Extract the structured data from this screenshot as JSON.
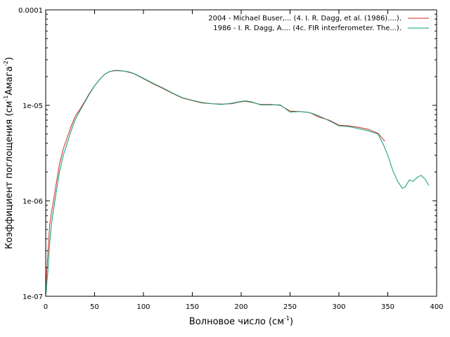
{
  "chart_data": {
    "type": "line",
    "xlabel": "Волновое число",
    "xlabel_unit_base": "(см",
    "xlabel_unit_exp": "-1",
    "xlabel_unit_close": ")",
    "ylabel_base": "Коэффициент поглощения (см",
    "ylabel_exp1": "-1",
    "ylabel_mid": "Амага",
    "ylabel_exp2": "-2",
    "ylabel_close": ")",
    "xlim": [
      0,
      400
    ],
    "ylim": [
      1e-07,
      0.0001
    ],
    "y_scale": "log",
    "x_ticks": [
      0,
      50,
      100,
      150,
      200,
      250,
      300,
      350,
      400
    ],
    "x_tick_labels": [
      "0",
      "50",
      "100",
      "150",
      "200",
      "250",
      "300",
      "350",
      "400"
    ],
    "y_ticks": [
      1e-07,
      1e-06,
      1e-05,
      0.0001
    ],
    "y_tick_labels": [
      "1e-07",
      "1e-06",
      "1e-05",
      "0.0001"
    ],
    "grid": false,
    "legend_position": "top-right",
    "series": [
      {
        "name": "2004 - Michael Buser,... (4. I. R. Dagg, et al. (1986)....).",
        "color": "#cc2a1f",
        "x": [
          0,
          2,
          4,
          6,
          8,
          10,
          14,
          18,
          22,
          26,
          30,
          35,
          40,
          45,
          50,
          55,
          60,
          65,
          70,
          75,
          80,
          85,
          90,
          100,
          110,
          120,
          130,
          140,
          150,
          160,
          170,
          180,
          190,
          200,
          205,
          210,
          220,
          230,
          240,
          250,
          260,
          270,
          280,
          290,
          300,
          310,
          320,
          330,
          340,
          347
        ],
        "y": [
          1.2e-07,
          2.6e-07,
          5.5e-07,
          7.6e-07,
          1e-06,
          1.35e-06,
          2.4e-06,
          3.5e-06,
          4.6e-06,
          6e-06,
          7.6e-06,
          9.1e-06,
          1.1e-05,
          1.35e-05,
          1.6e-05,
          1.85e-05,
          2.1e-05,
          2.25e-05,
          2.3e-05,
          2.3e-05,
          2.28e-05,
          2.22e-05,
          2.15e-05,
          1.9e-05,
          1.68e-05,
          1.5e-05,
          1.33e-05,
          1.19e-05,
          1.12e-05,
          1.06e-05,
          1.04e-05,
          1.03e-05,
          1.04e-05,
          1.09e-05,
          1.1e-05,
          1.08e-05,
          1.02e-05,
          1.02e-05,
          1e-05,
          8.7e-06,
          8.6e-06,
          8.4e-06,
          7.5e-06,
          7e-06,
          6.2e-06,
          6.1e-06,
          5.9e-06,
          5.6e-06,
          5.1e-06,
          4.2e-06
        ]
      },
      {
        "name": "1986 - I. R. Dagg, A.... (4c. FIR interferometer. The...).",
        "color": "#0b9b76",
        "x": [
          0,
          2,
          4,
          6,
          8,
          10,
          14,
          18,
          22,
          26,
          30,
          35,
          40,
          45,
          50,
          55,
          60,
          65,
          70,
          75,
          80,
          85,
          90,
          100,
          110,
          120,
          130,
          140,
          150,
          160,
          170,
          180,
          190,
          200,
          205,
          210,
          220,
          230,
          240,
          250,
          260,
          270,
          280,
          290,
          300,
          310,
          320,
          330,
          340,
          345,
          350,
          355,
          360,
          365,
          368,
          372,
          376,
          380,
          384,
          388,
          392
        ],
        "y": [
          1e-07,
          1.7e-07,
          3.5e-07,
          5.8e-07,
          8e-07,
          1.1e-06,
          2e-06,
          3e-06,
          4e-06,
          5.4e-06,
          7e-06,
          8.8e-06,
          1.08e-05,
          1.33e-05,
          1.6e-05,
          1.85e-05,
          2.1e-05,
          2.25e-05,
          2.32e-05,
          2.32e-05,
          2.28e-05,
          2.24e-05,
          2.16e-05,
          1.92e-05,
          1.7e-05,
          1.52e-05,
          1.34e-05,
          1.2e-05,
          1.13e-05,
          1.07e-05,
          1.04e-05,
          1.02e-05,
          1.05e-05,
          1.1e-05,
          1.11e-05,
          1.09e-05,
          1.01e-05,
          1.01e-05,
          1.01e-05,
          8.5e-06,
          8.6e-06,
          8.4e-06,
          7.7e-06,
          6.9e-06,
          6.1e-06,
          6e-06,
          5.7e-06,
          5.4e-06,
          5e-06,
          4e-06,
          3e-06,
          2.1e-06,
          1.6e-06,
          1.35e-06,
          1.4e-06,
          1.65e-06,
          1.6e-06,
          1.75e-06,
          1.85e-06,
          1.7e-06,
          1.45e-06
        ]
      }
    ]
  }
}
